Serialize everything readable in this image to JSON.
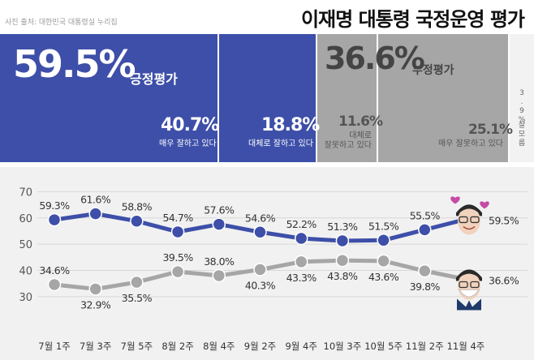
{
  "source": "사진 출처: 대한민국 대통령실 누리집",
  "title": "이재명 대통령 국정운영 평가",
  "summary": {
    "positive": {
      "value": "59.5%",
      "label": "긍정평가",
      "breakdown": [
        {
          "value": "40.7%",
          "label": "매우 잘하고 있다"
        },
        {
          "value": "18.8%",
          "label": "대체로 잘하고 있다"
        }
      ]
    },
    "negative": {
      "value": "36.6%",
      "label": "부정평가",
      "breakdown": [
        {
          "value": "11.6%",
          "label1": "대체로",
          "label2": "잘못하고 있다"
        },
        {
          "value": "25.1%",
          "label": "매우 잘못하고 있다"
        }
      ]
    },
    "dont_know": {
      "value": "3.9%",
      "label": "잘모름"
    }
  },
  "colors": {
    "positive": "#3d4fa8",
    "negative": "#a6a6a6"
  },
  "icons": [
    "president-face-smiling-with-hearts",
    "president-face-neutral-with-mask"
  ],
  "chart_data": {
    "type": "line",
    "categories": [
      "7월 1주",
      "7월 3주",
      "7월 5주",
      "8월 2주",
      "8월 4주",
      "9월 2주",
      "9월 4주",
      "10월 3주",
      "10월 5주",
      "11월 2주",
      "11월 4주"
    ],
    "series": [
      {
        "key": "positive",
        "values": [
          59.3,
          61.6,
          58.8,
          54.7,
          57.6,
          54.6,
          52.2,
          51.3,
          51.5,
          55.5,
          59.5
        ],
        "labels": [
          "59.3%",
          "61.6%",
          "58.8%",
          "54.7%",
          "57.6%",
          "54.6%",
          "52.2%",
          "51.3%",
          "51.5%",
          "55.5%",
          "59.5%"
        ]
      },
      {
        "key": "negative",
        "values": [
          34.6,
          32.9,
          35.5,
          39.5,
          38.0,
          40.3,
          43.3,
          43.8,
          43.6,
          39.8,
          36.6
        ],
        "labels": [
          "34.6%",
          "32.9%",
          "35.5%",
          "39.5%",
          "38.0%",
          "40.3%",
          "43.3%",
          "43.8%",
          "43.6%",
          "39.8%",
          "36.6%"
        ]
      }
    ],
    "yticks": [
      70,
      60,
      50,
      40,
      30
    ],
    "ylim": [
      25,
      72
    ],
    "grid": true
  }
}
